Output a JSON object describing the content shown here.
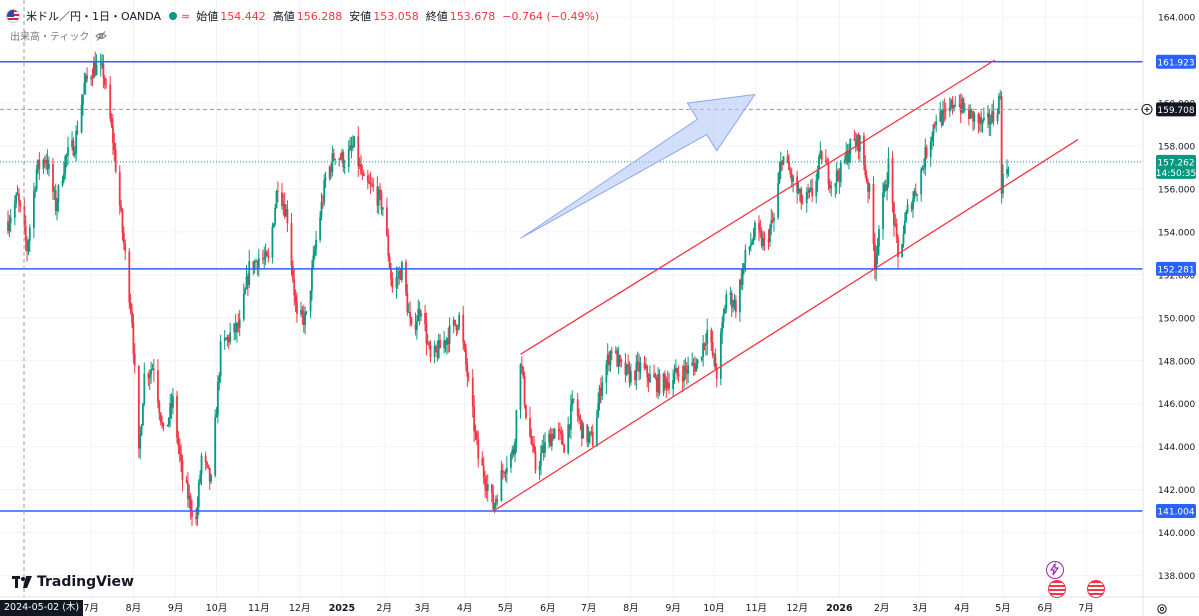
{
  "header": {
    "symbol": "米ドル／円・1日・OANDA",
    "approx_symbol": "≈",
    "open_label": "始値",
    "open_value": "154.442",
    "high_label": "高値",
    "high_value": "156.288",
    "low_label": "安値",
    "low_value": "153.058",
    "close_label": "終値",
    "close_value": "153.678",
    "change": "−0.764 (−0.49%)",
    "volume_label": "出来高・ティック"
  },
  "branding": {
    "logo_text": "TradingView"
  },
  "footer": {
    "date_label": "2024-05-02 (木)"
  },
  "colors": {
    "up": "#089981",
    "down": "#f23645",
    "horizontal_line": "#2962ff",
    "channel": "#f23645",
    "arrow": "#aec4f5",
    "grid": "#f0f3fa",
    "axis_text": "#131722"
  },
  "chart_data": {
    "type": "candlestick",
    "y_axis": {
      "range": [
        137.0,
        164.8
      ],
      "ticks": [
        "164.000",
        "162.000",
        "160.000",
        "158.000",
        "156.000",
        "154.000",
        "152.000",
        "150.000",
        "148.000",
        "146.000",
        "144.000",
        "142.000",
        "140.000",
        "138.000"
      ],
      "tick_values": [
        164,
        162,
        160,
        158,
        156,
        154,
        152,
        150,
        148,
        146,
        144,
        142,
        140,
        138
      ]
    },
    "x_axis": {
      "labels": [
        "7月",
        "8月",
        "9月",
        "10月",
        "11月",
        "12月",
        "2025",
        "2月",
        "3月",
        "4月",
        "5月",
        "6月",
        "7月",
        "8月",
        "9月",
        "10月",
        "11月",
        "12月",
        "2026",
        "2月",
        "3月",
        "4月",
        "5月",
        "6月",
        "7月"
      ],
      "label_months": [
        "2024-07",
        "2024-08",
        "2024-09",
        "2024-10",
        "2024-11",
        "2024-12",
        "2025-01",
        "2025-02",
        "2025-03",
        "2025-04",
        "2025-05",
        "2025-06",
        "2025-07",
        "2025-08",
        "2025-09",
        "2025-10",
        "2025-11",
        "2025-12",
        "2026-01",
        "2026-02",
        "2026-03",
        "2026-04",
        "2026-05",
        "2026-06",
        "2026-07"
      ],
      "range": [
        "2024-05-01",
        "2026-07-31"
      ],
      "start_date": "2024-05-01"
    },
    "price_path": [
      [
        "2024-05-01",
        154.5
      ],
      [
        "2024-05-08",
        155.6
      ],
      [
        "2024-05-15",
        153.2
      ],
      [
        "2024-05-22",
        156.9
      ],
      [
        "2024-05-29",
        157.5
      ],
      [
        "2024-06-05",
        155.2
      ],
      [
        "2024-06-12",
        157.4
      ],
      [
        "2024-06-19",
        158.1
      ],
      [
        "2024-06-26",
        160.8
      ],
      [
        "2024-07-03",
        161.7
      ],
      [
        "2024-07-10",
        161.4
      ],
      [
        "2024-07-17",
        158.3
      ],
      [
        "2024-07-24",
        154.0
      ],
      [
        "2024-07-31",
        150.0
      ],
      [
        "2024-08-05",
        143.5
      ],
      [
        "2024-08-09",
        147.3
      ],
      [
        "2024-08-16",
        147.8
      ],
      [
        "2024-08-23",
        144.5
      ],
      [
        "2024-08-30",
        146.1
      ],
      [
        "2024-09-06",
        142.5
      ],
      [
        "2024-09-16",
        140.5
      ],
      [
        "2024-09-20",
        143.5
      ],
      [
        "2024-09-27",
        142.3
      ],
      [
        "2024-10-04",
        148.5
      ],
      [
        "2024-10-11",
        149.2
      ],
      [
        "2024-10-18",
        149.6
      ],
      [
        "2024-10-25",
        152.3
      ],
      [
        "2024-11-01",
        152.8
      ],
      [
        "2024-11-08",
        152.6
      ],
      [
        "2024-11-15",
        156.3
      ],
      [
        "2024-11-22",
        154.7
      ],
      [
        "2024-11-29",
        149.9
      ],
      [
        "2024-12-06",
        150.0
      ],
      [
        "2024-12-13",
        153.6
      ],
      [
        "2024-12-20",
        156.4
      ],
      [
        "2024-12-27",
        157.7
      ],
      [
        "2025-01-03",
        157.3
      ],
      [
        "2025-01-10",
        158.0
      ],
      [
        "2025-01-17",
        156.2
      ],
      [
        "2025-01-24",
        156.0
      ],
      [
        "2025-01-31",
        155.2
      ],
      [
        "2025-02-07",
        151.4
      ],
      [
        "2025-02-14",
        152.3
      ],
      [
        "2025-02-21",
        149.3
      ],
      [
        "2025-02-28",
        150.6
      ],
      [
        "2025-03-07",
        148.0
      ],
      [
        "2025-03-14",
        148.6
      ],
      [
        "2025-03-21",
        149.3
      ],
      [
        "2025-03-28",
        150.0
      ],
      [
        "2025-04-04",
        146.9
      ],
      [
        "2025-04-11",
        143.5
      ],
      [
        "2025-04-18",
        142.2
      ],
      [
        "2025-04-22",
        141.2
      ],
      [
        "2025-04-30",
        143.1
      ],
      [
        "2025-05-07",
        143.8
      ],
      [
        "2025-05-12",
        148.2
      ],
      [
        "2025-05-16",
        145.6
      ],
      [
        "2025-05-23",
        143.0
      ],
      [
        "2025-05-30",
        144.0
      ],
      [
        "2025-06-06",
        144.8
      ],
      [
        "2025-06-13",
        144.1
      ],
      [
        "2025-06-20",
        146.1
      ],
      [
        "2025-06-27",
        144.6
      ],
      [
        "2025-07-04",
        144.3
      ],
      [
        "2025-07-11",
        147.2
      ],
      [
        "2025-07-18",
        148.6
      ],
      [
        "2025-07-25",
        147.6
      ],
      [
        "2025-08-01",
        147.3
      ],
      [
        "2025-08-08",
        147.7
      ],
      [
        "2025-08-15",
        147.2
      ],
      [
        "2025-08-22",
        146.9
      ],
      [
        "2025-08-29",
        147.1
      ],
      [
        "2025-09-05",
        147.4
      ],
      [
        "2025-09-12",
        147.6
      ],
      [
        "2025-09-19",
        147.9
      ],
      [
        "2025-09-26",
        149.4
      ],
      [
        "2025-10-03",
        147.4
      ],
      [
        "2025-10-10",
        151.1
      ],
      [
        "2025-10-17",
        150.6
      ],
      [
        "2025-10-24",
        152.8
      ],
      [
        "2025-10-31",
        154.0
      ],
      [
        "2025-11-07",
        153.4
      ],
      [
        "2025-11-14",
        154.6
      ],
      [
        "2025-11-20",
        157.6
      ],
      [
        "2025-11-28",
        156.3
      ],
      [
        "2025-12-05",
        155.3
      ],
      [
        "2025-12-12",
        155.8
      ],
      [
        "2025-12-19",
        157.6
      ],
      [
        "2025-12-26",
        156.3
      ],
      [
        "2026-01-02",
        156.8
      ],
      [
        "2026-01-09",
        158.0
      ],
      [
        "2026-01-16",
        158.2
      ],
      [
        "2026-01-23",
        155.8
      ],
      [
        "2026-01-27",
        152.6
      ],
      [
        "2026-01-30",
        154.2
      ],
      [
        "2026-02-06",
        157.1
      ],
      [
        "2026-02-13",
        152.7
      ],
      [
        "2026-02-20",
        155.0
      ],
      [
        "2026-02-27",
        156.1
      ],
      [
        "2026-03-06",
        157.8
      ],
      [
        "2026-03-13",
        159.4
      ],
      [
        "2026-03-20",
        159.3
      ],
      [
        "2026-03-27",
        160.2
      ],
      [
        "2026-04-03",
        159.6
      ],
      [
        "2026-04-10",
        159.3
      ],
      [
        "2026-04-17",
        158.9
      ],
      [
        "2026-04-24",
        159.4
      ],
      [
        "2026-04-29",
        160.3
      ],
      [
        "2026-04-30",
        156.2
      ],
      [
        "2026-05-05",
        157.3
      ]
    ],
    "horizontal_lines": [
      {
        "price": 161.923,
        "label": "161.923"
      },
      {
        "price": 152.281,
        "label": "152.281"
      },
      {
        "price": 141.004,
        "label": "141.004"
      }
    ],
    "current_price": {
      "price": 157.262,
      "label": "157.262",
      "countdown": "14:50:35"
    },
    "crosshair_price": {
      "price": 159.708,
      "label": "159.708"
    },
    "channel": {
      "lower": [
        [
          "2025-04-22",
          141.0
        ],
        [
          "2026-06-25",
          158.3
        ]
      ],
      "upper": [
        [
          "2025-05-12",
          148.3
        ],
        [
          "2026-04-25",
          162.0
        ]
      ]
    },
    "arrow": {
      "from": [
        "2025-05-12",
        153.7
      ],
      "to": [
        "2025-10-31",
        160.4
      ]
    }
  }
}
